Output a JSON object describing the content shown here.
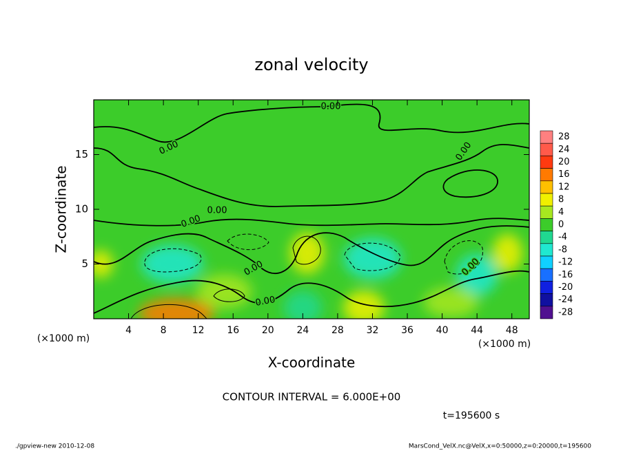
{
  "chart_data": {
    "type": "contour",
    "title": "zonal velocity",
    "xlabel": "X-coordinate",
    "ylabel": "Z-coordinate",
    "x_unit": "(×1000 m)",
    "x_unit_right": "(×1000 m)",
    "xlim": [
      0,
      50
    ],
    "ylim": [
      0,
      20
    ],
    "xticks": [
      4,
      8,
      12,
      16,
      20,
      24,
      28,
      32,
      36,
      40,
      44,
      48
    ],
    "yticks": [
      5,
      10,
      15
    ],
    "colorbar": {
      "levels": [
        28,
        24,
        20,
        16,
        12,
        8,
        4,
        0,
        -4,
        -8,
        -12,
        -16,
        -20,
        -24,
        -28
      ],
      "colors": [
        "#ff8080",
        "#ff5a4a",
        "#ff3a10",
        "#ff7a00",
        "#ffc000",
        "#f0f000",
        "#a8e820",
        "#3ccc2a",
        "#20d890",
        "#20e8d0",
        "#10d0ff",
        "#1870ff",
        "#1020e0",
        "#1010a0",
        "#501090"
      ]
    },
    "field": [
      {
        "x": 9,
        "z": 5,
        "value": -10
      },
      {
        "x": 32,
        "z": 5.5,
        "value": -10
      },
      {
        "x": 44,
        "z": 4,
        "value": -8
      },
      {
        "x": 24.5,
        "z": 6,
        "value": 8
      },
      {
        "x": 47.5,
        "z": 6,
        "value": 8
      },
      {
        "x": 9.5,
        "z": 0.5,
        "value": 14
      },
      {
        "x": 31,
        "z": 1,
        "value": 8
      },
      {
        "x": 0.8,
        "z": 5,
        "value": 6
      },
      {
        "x": 24,
        "z": 1,
        "value": -6
      },
      {
        "x": 15,
        "z": 2.5,
        "value": 4
      },
      {
        "x": 41,
        "z": 1.5,
        "value": 4
      }
    ],
    "contour_labels": [
      "0.00",
      "0.00",
      "0.00",
      "0.00",
      "0.00",
      "0.00",
      "0.00",
      "0.00"
    ],
    "annotation": "CONTOUR INTERVAL = 6.000E+00",
    "time_label": "t=195600 s",
    "footer_left": "./gpview-new   2010-12-08",
    "footer_right": "MarsCond_VelX.nc@VelX,x=0:50000,z=0:20000,t=195600"
  }
}
